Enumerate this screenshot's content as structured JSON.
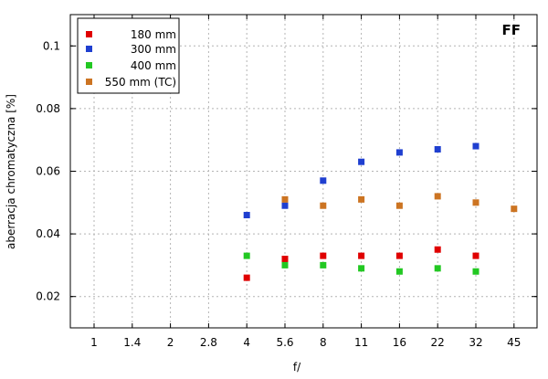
{
  "chart_data": {
    "type": "scatter",
    "corner_tag": "FF",
    "xlabel": "f/",
    "ylabel": "aberracja chromatyczna [%]",
    "x_categories": [
      "1",
      "1.4",
      "2",
      "2.8",
      "4",
      "5.6",
      "8",
      "11",
      "16",
      "22",
      "32",
      "45"
    ],
    "y_range": [
      0.01,
      0.11
    ],
    "y_ticks": [
      0.02,
      0.04,
      0.06,
      0.08,
      0.1
    ],
    "y_tick_labels": [
      "0.02",
      "0.04",
      "0.06",
      "0.08",
      "0.1"
    ],
    "grid": true,
    "legend_position": "top-left",
    "series": [
      {
        "name": "180 mm",
        "color": "#e00000",
        "points": [
          {
            "x": "4",
            "y": 0.026
          },
          {
            "x": "5.6",
            "y": 0.032
          },
          {
            "x": "8",
            "y": 0.033
          },
          {
            "x": "11",
            "y": 0.033
          },
          {
            "x": "16",
            "y": 0.033
          },
          {
            "x": "22",
            "y": 0.035
          },
          {
            "x": "32",
            "y": 0.033
          }
        ]
      },
      {
        "name": "300 mm",
        "color": "#1f3fd0",
        "points": [
          {
            "x": "4",
            "y": 0.046
          },
          {
            "x": "5.6",
            "y": 0.049
          },
          {
            "x": "8",
            "y": 0.057
          },
          {
            "x": "11",
            "y": 0.063
          },
          {
            "x": "16",
            "y": 0.066
          },
          {
            "x": "22",
            "y": 0.067
          },
          {
            "x": "32",
            "y": 0.068
          }
        ]
      },
      {
        "name": "400 mm",
        "color": "#22c822",
        "points": [
          {
            "x": "4",
            "y": 0.033
          },
          {
            "x": "5.6",
            "y": 0.03
          },
          {
            "x": "8",
            "y": 0.03
          },
          {
            "x": "11",
            "y": 0.029
          },
          {
            "x": "16",
            "y": 0.028
          },
          {
            "x": "22",
            "y": 0.029
          },
          {
            "x": "32",
            "y": 0.028
          }
        ]
      },
      {
        "name": "550 mm (TC)",
        "color": "#cc7422",
        "points": [
          {
            "x": "5.6",
            "y": 0.051
          },
          {
            "x": "8",
            "y": 0.049
          },
          {
            "x": "11",
            "y": 0.051
          },
          {
            "x": "16",
            "y": 0.049
          },
          {
            "x": "22",
            "y": 0.052
          },
          {
            "x": "32",
            "y": 0.05
          },
          {
            "x": "45",
            "y": 0.048
          }
        ]
      }
    ]
  }
}
